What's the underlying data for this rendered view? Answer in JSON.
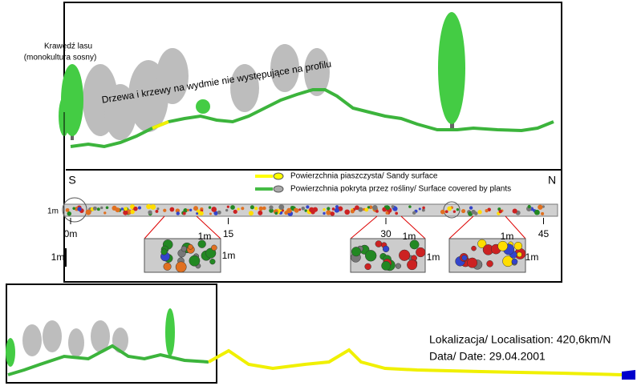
{
  "profile": {
    "forest_edge": [
      "Krawędź lasu",
      "(monokultura sosny)"
    ],
    "note": "Drzewa i krzewy na wydmie nie występujące na profilu"
  },
  "transect": {
    "south": "S",
    "north": "N",
    "width_label": "1m",
    "scale_label": "1m",
    "ticks": [
      {
        "value": 0,
        "label": "0m"
      },
      {
        "value": 15,
        "label": "15"
      },
      {
        "value": 30,
        "label": "30"
      },
      {
        "value": 45,
        "label": "45"
      }
    ]
  },
  "legend": [
    {
      "label": "Powierzchnia piaszczysta/ Sandy  surface",
      "color": "#ffff00"
    },
    {
      "label": "Powierzchnia pokryta przez rośliny/ Surface covered by plants",
      "color": "#44bb44"
    }
  ],
  "insets": [
    {
      "width_label": "1m",
      "height_label": "1m"
    },
    {
      "width_label": "1m",
      "height_label": "1m"
    },
    {
      "width_label": "1m",
      "height_label": "1m"
    }
  ],
  "location": {
    "localisation": "Lokalizacja/ Localisation: 420,6km/N",
    "date": "Data/ Date:  29.04.2001"
  }
}
